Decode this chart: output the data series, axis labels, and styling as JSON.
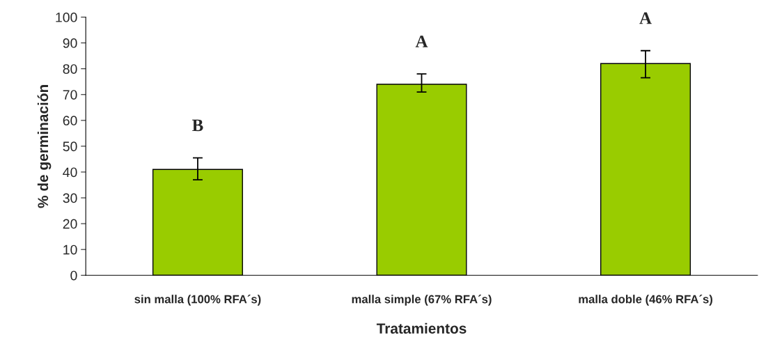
{
  "chart_data": {
    "type": "bar",
    "xlabel": "Tratamientos",
    "ylabel": "% de germinación",
    "categories": [
      "sin malla (100% RFA´s)",
      "malla simple (67% RFA´s)",
      "malla doble (46% RFA´s)"
    ],
    "values": [
      41,
      74,
      82
    ],
    "color": "#99cc00",
    "errors": [
      [
        37,
        45.5
      ],
      [
        71,
        78
      ],
      [
        76.5,
        87
      ]
    ],
    "ylim": [
      0,
      100
    ],
    "yticks": [
      0,
      10,
      20,
      30,
      40,
      50,
      60,
      70,
      80,
      90,
      100
    ],
    "grid": false,
    "annotations": [
      "B",
      "A",
      "A"
    ]
  }
}
